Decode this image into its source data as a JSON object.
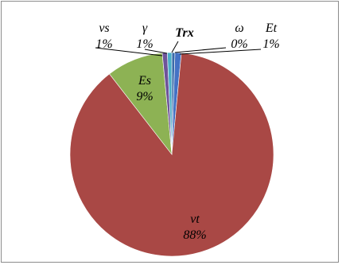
{
  "chart_data": {
    "type": "pie",
    "title": "",
    "slices": [
      {
        "label": "Trx",
        "value": 0.5,
        "display": "",
        "color": "#3a6aa8"
      },
      {
        "label": "Et",
        "value": 1.0,
        "display": "1%",
        "color": "#4472c4"
      },
      {
        "label": "vt",
        "value": 88.0,
        "display": "88%",
        "color": "#a94845"
      },
      {
        "label": "Es",
        "value": 9.0,
        "display": "9%",
        "color": "#8db254"
      },
      {
        "label": "vs",
        "value": 0.8,
        "display": "1%",
        "color": "#6e5399"
      },
      {
        "label": "γ",
        "value": 0.7,
        "display": "1%",
        "color": "#4aaec8"
      },
      {
        "label": "ω",
        "value": 0.0,
        "display": "0%",
        "color": "#f08c3a"
      }
    ]
  }
}
